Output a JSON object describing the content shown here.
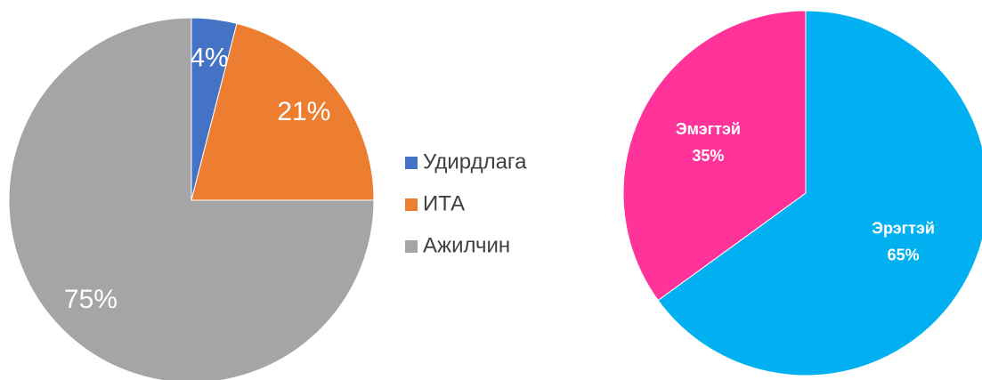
{
  "chart_data": [
    {
      "type": "pie",
      "categories": [
        "Удирдлага",
        "ИТА",
        "Ажилчин"
      ],
      "values": [
        4,
        21,
        75
      ],
      "value_labels": [
        "4%",
        "21%",
        "75%"
      ],
      "colors": [
        "#4472c4",
        "#ed7d31",
        "#a5a5a5"
      ],
      "legend": "right"
    },
    {
      "type": "pie",
      "categories": [
        "Эрэгтэй",
        "Эмэгтэй"
      ],
      "values": [
        65,
        35
      ],
      "value_labels": [
        "65%",
        "35%"
      ],
      "colors": [
        "#00b0f0",
        "#ff3399"
      ]
    }
  ]
}
